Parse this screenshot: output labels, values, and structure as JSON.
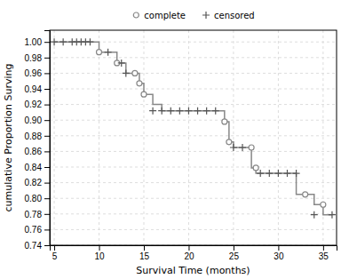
{
  "chart_data": {
    "type": "step",
    "xlabel": "Survival Time (months)",
    "ylabel": "cumulative Proportion Surving",
    "xlim": [
      4.5,
      36.5
    ],
    "ylim": [
      0.74,
      1.015
    ],
    "xticks": [
      5,
      10,
      15,
      20,
      25,
      30,
      35
    ],
    "yticks": [
      0.74,
      0.76,
      0.78,
      {
        "value": 0.8,
        "label": "0.80"
      },
      0.82,
      0.84,
      0.86,
      0.88,
      {
        "value": 0.9,
        "label": "0.90"
      },
      0.92,
      0.94,
      0.96,
      0.98,
      {
        "value": 1.0,
        "label": "1.00"
      }
    ],
    "grid": true,
    "legend": "top",
    "series": [
      {
        "type": "step",
        "line_style": "step",
        "color": "#888888",
        "x": [
          5,
          6,
          7,
          7.5,
          8,
          8.5,
          9,
          9.5,
          10,
          11,
          12,
          12.5,
          13,
          14,
          14.5,
          15,
          16,
          17,
          18,
          19,
          20,
          21,
          22,
          23,
          24,
          24.5,
          25,
          26,
          27,
          27.5,
          28,
          29,
          30,
          31,
          32,
          33,
          34,
          35,
          36
        ],
        "values": [
          1.0,
          1.0,
          1.0,
          1.0,
          1.0,
          1.0,
          1.0,
          1.0,
          0.987,
          0.987,
          0.973,
          0.973,
          0.96,
          0.96,
          0.947,
          0.933,
          0.92,
          0.912,
          0.912,
          0.912,
          0.912,
          0.912,
          0.912,
          0.912,
          0.898,
          0.872,
          0.865,
          0.865,
          0.839,
          0.832,
          0.832,
          0.832,
          0.832,
          0.832,
          0.805,
          0.805,
          0.792,
          0.779,
          0.779
        ]
      },
      {
        "name": "complete",
        "type": "scatter",
        "marker": "circle",
        "color": "#888888",
        "x": [
          10,
          12,
          14,
          14.5,
          15,
          24,
          24.5,
          27,
          27.5,
          33,
          35
        ],
        "values": [
          0.987,
          0.973,
          0.96,
          0.947,
          0.933,
          0.898,
          0.872,
          0.865,
          0.839,
          0.805,
          0.792
        ]
      },
      {
        "name": "censored",
        "type": "scatter",
        "marker": "plus",
        "color": "#555555",
        "x": [
          5,
          6,
          7,
          7.5,
          8,
          8.5,
          9,
          11,
          12.5,
          13,
          16,
          17,
          18,
          19,
          20,
          21,
          22,
          23,
          25,
          26,
          28,
          29,
          30,
          31,
          32,
          34,
          36
        ],
        "values": [
          1.0,
          1.0,
          1.0,
          1.0,
          1.0,
          1.0,
          1.0,
          0.987,
          0.973,
          0.96,
          0.912,
          0.912,
          0.912,
          0.912,
          0.912,
          0.912,
          0.912,
          0.912,
          0.865,
          0.865,
          0.832,
          0.832,
          0.832,
          0.832,
          0.832,
          0.779,
          0.779
        ]
      }
    ]
  }
}
